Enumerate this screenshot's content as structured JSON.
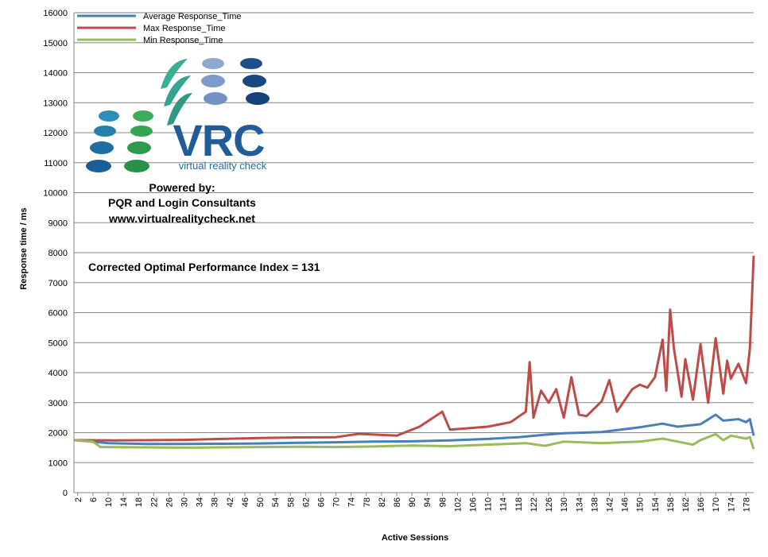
{
  "chart_data": {
    "type": "line",
    "xlabel": "Active Sessions",
    "ylabel": "Response time / ms",
    "ylim": [
      0,
      16000
    ],
    "ytick_step": 1000,
    "xlim": [
      1,
      180
    ],
    "x_tick_labels_from": 2,
    "x_tick_labels_to": 178,
    "x_tick_labels_step": 4,
    "grid": true,
    "legend_position": "top-left",
    "series": [
      {
        "name": "Average Response_Time",
        "color": "#4A7EBB",
        "points": [
          [
            1,
            1750
          ],
          [
            10,
            1650
          ],
          [
            20,
            1620
          ],
          [
            30,
            1620
          ],
          [
            40,
            1630
          ],
          [
            50,
            1640
          ],
          [
            60,
            1660
          ],
          [
            70,
            1680
          ],
          [
            80,
            1700
          ],
          [
            90,
            1710
          ],
          [
            100,
            1740
          ],
          [
            110,
            1790
          ],
          [
            118,
            1850
          ],
          [
            125,
            1930
          ],
          [
            130,
            1980
          ],
          [
            140,
            2020
          ],
          [
            150,
            2180
          ],
          [
            156,
            2300
          ],
          [
            160,
            2200
          ],
          [
            166,
            2280
          ],
          [
            170,
            2600
          ],
          [
            172,
            2400
          ],
          [
            176,
            2450
          ],
          [
            178,
            2350
          ],
          [
            179,
            2450
          ],
          [
            180,
            1900
          ]
        ]
      },
      {
        "name": "Max Response_Time",
        "color": "#BE4B48",
        "points": [
          [
            1,
            1750
          ],
          [
            12,
            1740
          ],
          [
            30,
            1760
          ],
          [
            40,
            1790
          ],
          [
            50,
            1820
          ],
          [
            60,
            1840
          ],
          [
            70,
            1850
          ],
          [
            76,
            1960
          ],
          [
            86,
            1900
          ],
          [
            92,
            2200
          ],
          [
            98,
            2700
          ],
          [
            100,
            2100
          ],
          [
            110,
            2200
          ],
          [
            116,
            2350
          ],
          [
            120,
            2700
          ],
          [
            121,
            4350
          ],
          [
            122,
            2500
          ],
          [
            124,
            3400
          ],
          [
            126,
            3000
          ],
          [
            128,
            3450
          ],
          [
            130,
            2500
          ],
          [
            132,
            3850
          ],
          [
            134,
            2600
          ],
          [
            136,
            2550
          ],
          [
            140,
            3050
          ],
          [
            142,
            3750
          ],
          [
            144,
            2700
          ],
          [
            148,
            3450
          ],
          [
            150,
            3600
          ],
          [
            152,
            3500
          ],
          [
            154,
            3850
          ],
          [
            156,
            5100
          ],
          [
            157,
            3400
          ],
          [
            158,
            6100
          ],
          [
            159,
            4800
          ],
          [
            161,
            3200
          ],
          [
            162,
            4450
          ],
          [
            164,
            3100
          ],
          [
            166,
            4950
          ],
          [
            168,
            3000
          ],
          [
            170,
            5150
          ],
          [
            172,
            3300
          ],
          [
            173,
            4400
          ],
          [
            174,
            3800
          ],
          [
            176,
            4300
          ],
          [
            178,
            3650
          ],
          [
            179,
            4800
          ],
          [
            180,
            7900
          ]
        ]
      },
      {
        "name": "Min Response_Time",
        "color": "#9BBB59",
        "points": [
          [
            1,
            1750
          ],
          [
            6,
            1700
          ],
          [
            8,
            1520
          ],
          [
            20,
            1510
          ],
          [
            30,
            1500
          ],
          [
            40,
            1510
          ],
          [
            50,
            1520
          ],
          [
            60,
            1530
          ],
          [
            70,
            1520
          ],
          [
            80,
            1540
          ],
          [
            90,
            1570
          ],
          [
            100,
            1550
          ],
          [
            110,
            1600
          ],
          [
            120,
            1650
          ],
          [
            125,
            1560
          ],
          [
            130,
            1700
          ],
          [
            140,
            1650
          ],
          [
            150,
            1700
          ],
          [
            156,
            1800
          ],
          [
            160,
            1700
          ],
          [
            164,
            1600
          ],
          [
            166,
            1750
          ],
          [
            170,
            1950
          ],
          [
            172,
            1750
          ],
          [
            174,
            1900
          ],
          [
            176,
            1850
          ],
          [
            178,
            1800
          ],
          [
            179,
            1850
          ],
          [
            180,
            1450
          ]
        ]
      }
    ]
  },
  "logo": {
    "brand": "VRC",
    "tagline": "virtual reality check",
    "powered_by": "Powered by:",
    "company": "PQR and Login Consultants",
    "website": "www.virtualrealitycheck.net"
  },
  "annotation": "Corrected Optimal Performance Index = 131"
}
